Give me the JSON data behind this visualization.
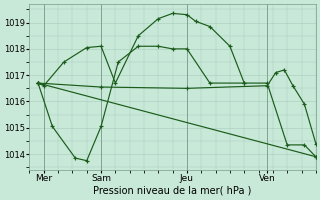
{
  "bg_color": "#c8e8d8",
  "grid_color": "#a8ccbc",
  "line_color": "#1a5c1a",
  "xlabel": "Pression niveau de la mer( hPa )",
  "ylim": [
    1013.4,
    1019.7
  ],
  "yticks": [
    1014,
    1015,
    1016,
    1017,
    1018,
    1019
  ],
  "xlim": [
    0.0,
    10.0
  ],
  "day_ticks": [
    0.5,
    2.5,
    5.5,
    8.3
  ],
  "day_labels": [
    "Mer",
    "Sam",
    "Jeu",
    "Ven"
  ],
  "vlines": [
    0.5,
    2.5,
    5.5,
    8.3
  ],
  "series": [
    {
      "x": [
        0.3,
        0.5,
        1.2,
        2.0,
        2.5,
        3.0,
        3.8,
        4.5,
        5.0,
        5.5,
        5.8,
        6.3,
        7.0,
        7.5
      ],
      "y": [
        1016.7,
        1016.6,
        1017.5,
        1018.05,
        1018.1,
        1016.7,
        1018.5,
        1019.15,
        1019.35,
        1019.3,
        1019.05,
        1018.85,
        1018.1,
        1016.7
      ]
    },
    {
      "x": [
        0.3,
        0.8,
        1.6,
        2.0,
        2.5,
        3.1,
        3.8,
        4.5,
        5.0,
        5.5,
        6.3,
        7.5,
        8.3,
        9.0,
        9.6,
        10.0
      ],
      "y": [
        1016.7,
        1015.05,
        1013.85,
        1013.75,
        1015.05,
        1017.5,
        1018.1,
        1018.1,
        1018.0,
        1018.0,
        1016.7,
        1016.7,
        1016.7,
        1014.35,
        1014.35,
        1013.9
      ]
    },
    {
      "x": [
        0.3,
        10.0
      ],
      "y": [
        1016.7,
        1013.9
      ]
    },
    {
      "x": [
        0.3,
        2.5,
        5.5,
        8.3,
        8.6,
        8.9,
        9.2,
        9.6,
        10.0
      ],
      "y": [
        1016.7,
        1016.55,
        1016.5,
        1016.6,
        1017.1,
        1017.2,
        1016.6,
        1015.9,
        1014.4
      ]
    }
  ]
}
